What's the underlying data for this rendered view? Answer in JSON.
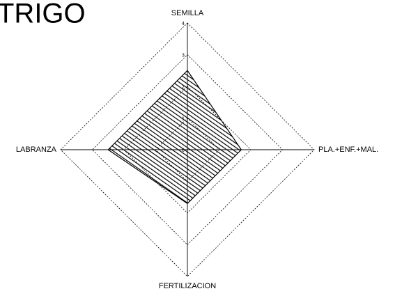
{
  "chart_data": {
    "type": "radar",
    "title": "TRIGO",
    "categories": [
      "SEMILLA",
      "PLA.+ENF.+MAL.",
      "FERTILIZACION",
      "LABRANZA"
    ],
    "values": [
      2.5,
      1.7,
      1.7,
      2.5
    ],
    "rlim": [
      0,
      4
    ],
    "rticks": [
      0,
      1,
      2,
      3,
      4
    ],
    "grid": true,
    "color": "#000000"
  }
}
